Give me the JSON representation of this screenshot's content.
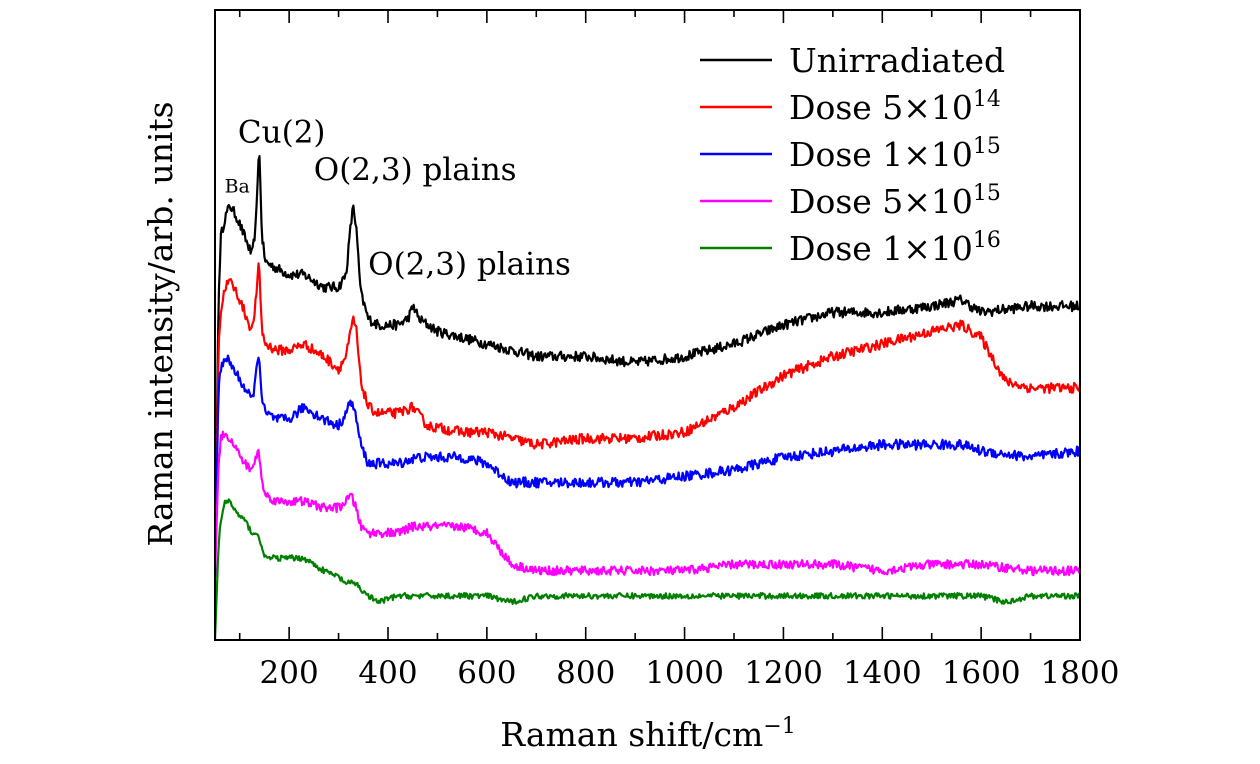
{
  "chart_data": {
    "type": "line",
    "xlabel": "Raman shift/cm",
    "xlabel_sup": "−1",
    "ylabel": "Raman intensity/arb. units",
    "xlim": [
      50,
      1800
    ],
    "ylim": [
      0,
      100
    ],
    "xticks": [
      200,
      400,
      600,
      800,
      1000,
      1200,
      1400,
      1600,
      1800
    ],
    "grid": false,
    "legend_position": "top-right",
    "annotations": [
      {
        "text": "Ba",
        "x": 95,
        "y": 71
      },
      {
        "text": "Cu(2)",
        "x": 185,
        "y": 79
      },
      {
        "text": "O(2,3) plains",
        "x": 455,
        "y": 73
      },
      {
        "text": "O(2,3) plains",
        "x": 565,
        "y": 58
      }
    ],
    "series": [
      {
        "name": "Unirradiated",
        "legend_label": "Unirradiated",
        "legend_sup": "",
        "color": "#000000",
        "points": [
          [
            50,
            10
          ],
          [
            57,
            54
          ],
          [
            62,
            64
          ],
          [
            70,
            67
          ],
          [
            80,
            69
          ],
          [
            95,
            67
          ],
          [
            110,
            64
          ],
          [
            125,
            61
          ],
          [
            133,
            66
          ],
          [
            139,
            79
          ],
          [
            145,
            64
          ],
          [
            152,
            60
          ],
          [
            175,
            59
          ],
          [
            200,
            58
          ],
          [
            230,
            58
          ],
          [
            270,
            56
          ],
          [
            300,
            56
          ],
          [
            315,
            58
          ],
          [
            325,
            66
          ],
          [
            330,
            69
          ],
          [
            336,
            65
          ],
          [
            345,
            55
          ],
          [
            360,
            51
          ],
          [
            380,
            50
          ],
          [
            420,
            50
          ],
          [
            440,
            51
          ],
          [
            452,
            53
          ],
          [
            462,
            51
          ],
          [
            500,
            49
          ],
          [
            550,
            48
          ],
          [
            600,
            47
          ],
          [
            650,
            46
          ],
          [
            700,
            45
          ],
          [
            800,
            45
          ],
          [
            900,
            44
          ],
          [
            1000,
            45
          ],
          [
            1100,
            47
          ],
          [
            1200,
            50
          ],
          [
            1300,
            52
          ],
          [
            1400,
            52
          ],
          [
            1500,
            53
          ],
          [
            1560,
            54
          ],
          [
            1600,
            52
          ],
          [
            1700,
            53
          ],
          [
            1800,
            53
          ]
        ],
        "noise": 0.8
      },
      {
        "name": "Dose 5×10^14",
        "legend_label": "Dose 5×10",
        "legend_sup": "14",
        "color": "#ff0000",
        "points": [
          [
            50,
            10
          ],
          [
            57,
            47
          ],
          [
            62,
            52
          ],
          [
            70,
            56
          ],
          [
            80,
            57
          ],
          [
            95,
            55
          ],
          [
            110,
            52
          ],
          [
            125,
            49
          ],
          [
            133,
            54
          ],
          [
            139,
            60
          ],
          [
            145,
            49
          ],
          [
            152,
            47
          ],
          [
            175,
            46
          ],
          [
            200,
            46
          ],
          [
            230,
            47
          ],
          [
            270,
            45
          ],
          [
            300,
            43
          ],
          [
            315,
            45
          ],
          [
            325,
            49
          ],
          [
            330,
            51
          ],
          [
            336,
            49
          ],
          [
            345,
            41
          ],
          [
            360,
            37
          ],
          [
            380,
            36
          ],
          [
            420,
            36
          ],
          [
            450,
            37
          ],
          [
            480,
            34
          ],
          [
            550,
            33
          ],
          [
            600,
            33
          ],
          [
            650,
            32
          ],
          [
            700,
            31
          ],
          [
            800,
            32
          ],
          [
            900,
            32
          ],
          [
            1000,
            33
          ],
          [
            1100,
            37
          ],
          [
            1200,
            42
          ],
          [
            1300,
            45
          ],
          [
            1400,
            47
          ],
          [
            1500,
            49
          ],
          [
            1560,
            50
          ],
          [
            1600,
            48
          ],
          [
            1650,
            41
          ],
          [
            1700,
            40
          ],
          [
            1800,
            40
          ]
        ],
        "noise": 0.8
      },
      {
        "name": "Dose 1×10^15",
        "legend_label": "Dose 1×10",
        "legend_sup": "15",
        "color": "#0000ff",
        "points": [
          [
            50,
            10
          ],
          [
            57,
            40
          ],
          [
            62,
            43
          ],
          [
            70,
            45
          ],
          [
            80,
            44
          ],
          [
            95,
            42
          ],
          [
            110,
            40
          ],
          [
            125,
            38
          ],
          [
            133,
            42
          ],
          [
            139,
            46
          ],
          [
            145,
            38
          ],
          [
            152,
            36
          ],
          [
            175,
            35
          ],
          [
            200,
            35
          ],
          [
            230,
            37
          ],
          [
            270,
            35
          ],
          [
            300,
            34
          ],
          [
            315,
            36
          ],
          [
            325,
            38
          ],
          [
            330,
            37
          ],
          [
            336,
            35
          ],
          [
            345,
            31
          ],
          [
            360,
            28
          ],
          [
            380,
            28
          ],
          [
            420,
            28
          ],
          [
            460,
            29
          ],
          [
            500,
            29
          ],
          [
            550,
            29
          ],
          [
            600,
            28
          ],
          [
            650,
            25
          ],
          [
            700,
            25
          ],
          [
            800,
            25
          ],
          [
            900,
            25
          ],
          [
            1000,
            26
          ],
          [
            1100,
            27
          ],
          [
            1200,
            29
          ],
          [
            1300,
            30
          ],
          [
            1400,
            31
          ],
          [
            1500,
            31
          ],
          [
            1560,
            31
          ],
          [
            1600,
            30
          ],
          [
            1700,
            29
          ],
          [
            1800,
            30
          ]
        ],
        "noise": 0.8
      },
      {
        "name": "Dose 5×10^15",
        "legend_label": "Dose 5×10",
        "legend_sup": "15",
        "color": "#ff00ff",
        "points": [
          [
            50,
            10
          ],
          [
            57,
            28
          ],
          [
            62,
            32
          ],
          [
            70,
            33
          ],
          [
            80,
            32
          ],
          [
            95,
            30
          ],
          [
            110,
            28
          ],
          [
            125,
            27
          ],
          [
            133,
            29
          ],
          [
            139,
            30
          ],
          [
            145,
            25
          ],
          [
            152,
            23
          ],
          [
            175,
            22
          ],
          [
            200,
            22
          ],
          [
            230,
            22
          ],
          [
            270,
            21
          ],
          [
            300,
            21
          ],
          [
            315,
            22
          ],
          [
            325,
            23
          ],
          [
            330,
            22
          ],
          [
            336,
            21
          ],
          [
            345,
            18
          ],
          [
            360,
            17
          ],
          [
            380,
            17
          ],
          [
            420,
            17
          ],
          [
            450,
            18
          ],
          [
            500,
            18
          ],
          [
            550,
            18
          ],
          [
            600,
            17
          ],
          [
            650,
            12
          ],
          [
            700,
            11
          ],
          [
            800,
            11
          ],
          [
            900,
            11
          ],
          [
            1000,
            11
          ],
          [
            1100,
            12
          ],
          [
            1200,
            12
          ],
          [
            1300,
            12
          ],
          [
            1400,
            11
          ],
          [
            1500,
            12
          ],
          [
            1560,
            12
          ],
          [
            1600,
            12
          ],
          [
            1700,
            11
          ],
          [
            1800,
            11
          ]
        ],
        "noise": 0.7
      },
      {
        "name": "Dose 1×10^16",
        "legend_label": "Dose 1×10",
        "legend_sup": "16",
        "color": "#008000",
        "points": [
          [
            50,
            0
          ],
          [
            57,
            15
          ],
          [
            62,
            19
          ],
          [
            70,
            22
          ],
          [
            80,
            22
          ],
          [
            95,
            20
          ],
          [
            110,
            19
          ],
          [
            125,
            17
          ],
          [
            133,
            17
          ],
          [
            139,
            16
          ],
          [
            145,
            15
          ],
          [
            152,
            13
          ],
          [
            175,
            13
          ],
          [
            200,
            13
          ],
          [
            230,
            13
          ],
          [
            270,
            11
          ],
          [
            300,
            10
          ],
          [
            315,
            9
          ],
          [
            325,
            9
          ],
          [
            336,
            9
          ],
          [
            345,
            8
          ],
          [
            360,
            7
          ],
          [
            380,
            6
          ],
          [
            420,
            7
          ],
          [
            500,
            7
          ],
          [
            600,
            7
          ],
          [
            650,
            6
          ],
          [
            700,
            7
          ],
          [
            800,
            7
          ],
          [
            900,
            7
          ],
          [
            1000,
            7
          ],
          [
            1100,
            7
          ],
          [
            1200,
            7
          ],
          [
            1300,
            7
          ],
          [
            1400,
            7
          ],
          [
            1500,
            7
          ],
          [
            1600,
            7
          ],
          [
            1650,
            6
          ],
          [
            1700,
            7
          ],
          [
            1800,
            7
          ]
        ],
        "noise": 0.45
      }
    ]
  }
}
